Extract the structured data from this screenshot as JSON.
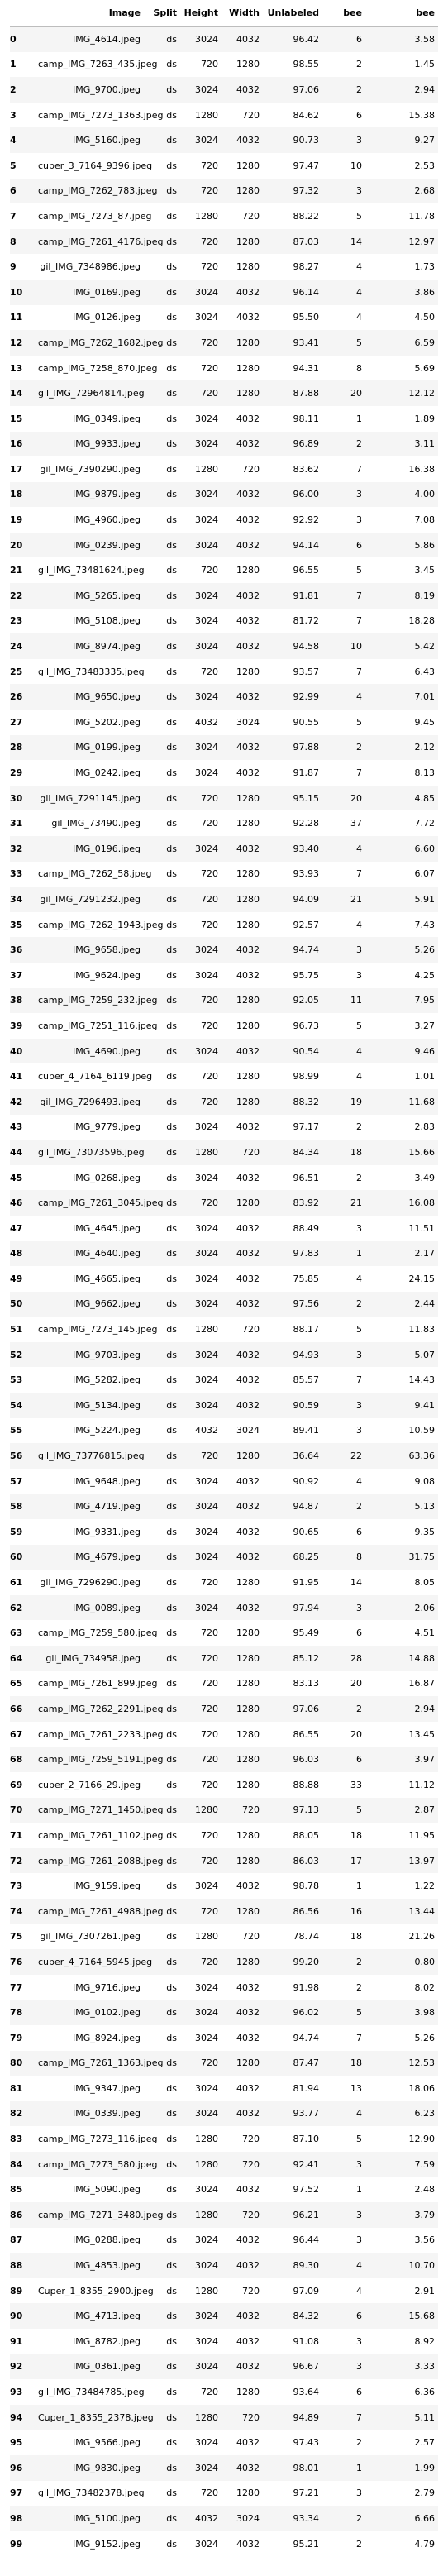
{
  "columns": [
    "",
    "Image",
    "Split",
    "Height",
    "Width",
    "Unlabeled",
    "bee",
    "bee"
  ],
  "rows": [
    [
      "0",
      "IMG_4614.jpeg",
      "ds",
      "3024",
      "4032",
      "96.42",
      "6",
      "3.58"
    ],
    [
      "1",
      "camp_IMG_7263_435.jpeg",
      "ds",
      "720",
      "1280",
      "98.55",
      "2",
      "1.45"
    ],
    [
      "2",
      "IMG_9700.jpeg",
      "ds",
      "3024",
      "4032",
      "97.06",
      "2",
      "2.94"
    ],
    [
      "3",
      "camp_IMG_7273_1363.jpeg",
      "ds",
      "1280",
      "720",
      "84.62",
      "6",
      "15.38"
    ],
    [
      "4",
      "IMG_5160.jpeg",
      "ds",
      "3024",
      "4032",
      "90.73",
      "3",
      "9.27"
    ],
    [
      "5",
      "cuper_3_7164_9396.jpeg",
      "ds",
      "720",
      "1280",
      "97.47",
      "10",
      "2.53"
    ],
    [
      "6",
      "camp_IMG_7262_783.jpeg",
      "ds",
      "720",
      "1280",
      "97.32",
      "3",
      "2.68"
    ],
    [
      "7",
      "camp_IMG_7273_87.jpeg",
      "ds",
      "1280",
      "720",
      "88.22",
      "5",
      "11.78"
    ],
    [
      "8",
      "camp_IMG_7261_4176.jpeg",
      "ds",
      "720",
      "1280",
      "87.03",
      "14",
      "12.97"
    ],
    [
      "9",
      "gil_IMG_7348986.jpeg",
      "ds",
      "720",
      "1280",
      "98.27",
      "4",
      "1.73"
    ],
    [
      "10",
      "IMG_0169.jpeg",
      "ds",
      "3024",
      "4032",
      "96.14",
      "4",
      "3.86"
    ],
    [
      "11",
      "IMG_0126.jpeg",
      "ds",
      "3024",
      "4032",
      "95.50",
      "4",
      "4.50"
    ],
    [
      "12",
      "camp_IMG_7262_1682.jpeg",
      "ds",
      "720",
      "1280",
      "93.41",
      "5",
      "6.59"
    ],
    [
      "13",
      "camp_IMG_7258_870.jpeg",
      "ds",
      "720",
      "1280",
      "94.31",
      "8",
      "5.69"
    ],
    [
      "14",
      "gil_IMG_72964814.jpeg",
      "ds",
      "720",
      "1280",
      "87.88",
      "20",
      "12.12"
    ],
    [
      "15",
      "IMG_0349.jpeg",
      "ds",
      "3024",
      "4032",
      "98.11",
      "1",
      "1.89"
    ],
    [
      "16",
      "IMG_9933.jpeg",
      "ds",
      "3024",
      "4032",
      "96.89",
      "2",
      "3.11"
    ],
    [
      "17",
      "gil_IMG_7390290.jpeg",
      "ds",
      "1280",
      "720",
      "83.62",
      "7",
      "16.38"
    ],
    [
      "18",
      "IMG_9879.jpeg",
      "ds",
      "3024",
      "4032",
      "96.00",
      "3",
      "4.00"
    ],
    [
      "19",
      "IMG_4960.jpeg",
      "ds",
      "3024",
      "4032",
      "92.92",
      "3",
      "7.08"
    ],
    [
      "20",
      "IMG_0239.jpeg",
      "ds",
      "3024",
      "4032",
      "94.14",
      "6",
      "5.86"
    ],
    [
      "21",
      "gil_IMG_73481624.jpeg",
      "ds",
      "720",
      "1280",
      "96.55",
      "5",
      "3.45"
    ],
    [
      "22",
      "IMG_5265.jpeg",
      "ds",
      "3024",
      "4032",
      "91.81",
      "7",
      "8.19"
    ],
    [
      "23",
      "IMG_5108.jpeg",
      "ds",
      "3024",
      "4032",
      "81.72",
      "7",
      "18.28"
    ],
    [
      "24",
      "IMG_8974.jpeg",
      "ds",
      "3024",
      "4032",
      "94.58",
      "10",
      "5.42"
    ],
    [
      "25",
      "gil_IMG_73483335.jpeg",
      "ds",
      "720",
      "1280",
      "93.57",
      "7",
      "6.43"
    ],
    [
      "26",
      "IMG_9650.jpeg",
      "ds",
      "3024",
      "4032",
      "92.99",
      "4",
      "7.01"
    ],
    [
      "27",
      "IMG_5202.jpeg",
      "ds",
      "4032",
      "3024",
      "90.55",
      "5",
      "9.45"
    ],
    [
      "28",
      "IMG_0199.jpeg",
      "ds",
      "3024",
      "4032",
      "97.88",
      "2",
      "2.12"
    ],
    [
      "29",
      "IMG_0242.jpeg",
      "ds",
      "3024",
      "4032",
      "91.87",
      "7",
      "8.13"
    ],
    [
      "30",
      "gil_IMG_7291145.jpeg",
      "ds",
      "720",
      "1280",
      "95.15",
      "20",
      "4.85"
    ],
    [
      "31",
      "gil_IMG_73490.jpeg",
      "ds",
      "720",
      "1280",
      "92.28",
      "37",
      "7.72"
    ],
    [
      "32",
      "IMG_0196.jpeg",
      "ds",
      "3024",
      "4032",
      "93.40",
      "4",
      "6.60"
    ],
    [
      "33",
      "camp_IMG_7262_58.jpeg",
      "ds",
      "720",
      "1280",
      "93.93",
      "7",
      "6.07"
    ],
    [
      "34",
      "gil_IMG_7291232.jpeg",
      "ds",
      "720",
      "1280",
      "94.09",
      "21",
      "5.91"
    ],
    [
      "35",
      "camp_IMG_7262_1943.jpeg",
      "ds",
      "720",
      "1280",
      "92.57",
      "4",
      "7.43"
    ],
    [
      "36",
      "IMG_9658.jpeg",
      "ds",
      "3024",
      "4032",
      "94.74",
      "3",
      "5.26"
    ],
    [
      "37",
      "IMG_9624.jpeg",
      "ds",
      "3024",
      "4032",
      "95.75",
      "3",
      "4.25"
    ],
    [
      "38",
      "camp_IMG_7259_232.jpeg",
      "ds",
      "720",
      "1280",
      "92.05",
      "11",
      "7.95"
    ],
    [
      "39",
      "camp_IMG_7251_116.jpeg",
      "ds",
      "720",
      "1280",
      "96.73",
      "5",
      "3.27"
    ],
    [
      "40",
      "IMG_4690.jpeg",
      "ds",
      "3024",
      "4032",
      "90.54",
      "4",
      "9.46"
    ],
    [
      "41",
      "cuper_4_7164_6119.jpeg",
      "ds",
      "720",
      "1280",
      "98.99",
      "4",
      "1.01"
    ],
    [
      "42",
      "gil_IMG_7296493.jpeg",
      "ds",
      "720",
      "1280",
      "88.32",
      "19",
      "11.68"
    ],
    [
      "43",
      "IMG_9779.jpeg",
      "ds",
      "3024",
      "4032",
      "97.17",
      "2",
      "2.83"
    ],
    [
      "44",
      "gil_IMG_73073596.jpeg",
      "ds",
      "1280",
      "720",
      "84.34",
      "18",
      "15.66"
    ],
    [
      "45",
      "IMG_0268.jpeg",
      "ds",
      "3024",
      "4032",
      "96.51",
      "2",
      "3.49"
    ],
    [
      "46",
      "camp_IMG_7261_3045.jpeg",
      "ds",
      "720",
      "1280",
      "83.92",
      "21",
      "16.08"
    ],
    [
      "47",
      "IMG_4645.jpeg",
      "ds",
      "3024",
      "4032",
      "88.49",
      "3",
      "11.51"
    ],
    [
      "48",
      "IMG_4640.jpeg",
      "ds",
      "3024",
      "4032",
      "97.83",
      "1",
      "2.17"
    ],
    [
      "49",
      "IMG_4665.jpeg",
      "ds",
      "3024",
      "4032",
      "75.85",
      "4",
      "24.15"
    ],
    [
      "50",
      "IMG_9662.jpeg",
      "ds",
      "3024",
      "4032",
      "97.56",
      "2",
      "2.44"
    ],
    [
      "51",
      "camp_IMG_7273_145.jpeg",
      "ds",
      "1280",
      "720",
      "88.17",
      "5",
      "11.83"
    ],
    [
      "52",
      "IMG_9703.jpeg",
      "ds",
      "3024",
      "4032",
      "94.93",
      "3",
      "5.07"
    ],
    [
      "53",
      "IMG_5282.jpeg",
      "ds",
      "3024",
      "4032",
      "85.57",
      "7",
      "14.43"
    ],
    [
      "54",
      "IMG_5134.jpeg",
      "ds",
      "3024",
      "4032",
      "90.59",
      "3",
      "9.41"
    ],
    [
      "55",
      "IMG_5224.jpeg",
      "ds",
      "4032",
      "3024",
      "89.41",
      "3",
      "10.59"
    ],
    [
      "56",
      "gil_IMG_73776815.jpeg",
      "ds",
      "720",
      "1280",
      "36.64",
      "22",
      "63.36"
    ],
    [
      "57",
      "IMG_9648.jpeg",
      "ds",
      "3024",
      "4032",
      "90.92",
      "4",
      "9.08"
    ],
    [
      "58",
      "IMG_4719.jpeg",
      "ds",
      "3024",
      "4032",
      "94.87",
      "2",
      "5.13"
    ],
    [
      "59",
      "IMG_9331.jpeg",
      "ds",
      "3024",
      "4032",
      "90.65",
      "6",
      "9.35"
    ],
    [
      "60",
      "IMG_4679.jpeg",
      "ds",
      "3024",
      "4032",
      "68.25",
      "8",
      "31.75"
    ],
    [
      "61",
      "gil_IMG_7296290.jpeg",
      "ds",
      "720",
      "1280",
      "91.95",
      "14",
      "8.05"
    ],
    [
      "62",
      "IMG_0089.jpeg",
      "ds",
      "3024",
      "4032",
      "97.94",
      "3",
      "2.06"
    ],
    [
      "63",
      "camp_IMG_7259_580.jpeg",
      "ds",
      "720",
      "1280",
      "95.49",
      "6",
      "4.51"
    ],
    [
      "64",
      "gil_IMG_734958.jpeg",
      "ds",
      "720",
      "1280",
      "85.12",
      "28",
      "14.88"
    ],
    [
      "65",
      "camp_IMG_7261_899.jpeg",
      "ds",
      "720",
      "1280",
      "83.13",
      "20",
      "16.87"
    ],
    [
      "66",
      "camp_IMG_7262_2291.jpeg",
      "ds",
      "720",
      "1280",
      "97.06",
      "2",
      "2.94"
    ],
    [
      "67",
      "camp_IMG_7261_2233.jpeg",
      "ds",
      "720",
      "1280",
      "86.55",
      "20",
      "13.45"
    ],
    [
      "68",
      "camp_IMG_7259_5191.jpeg",
      "ds",
      "720",
      "1280",
      "96.03",
      "6",
      "3.97"
    ],
    [
      "69",
      "cuper_2_7166_29.jpeg",
      "ds",
      "720",
      "1280",
      "88.88",
      "33",
      "11.12"
    ],
    [
      "70",
      "camp_IMG_7271_1450.jpeg",
      "ds",
      "1280",
      "720",
      "97.13",
      "5",
      "2.87"
    ],
    [
      "71",
      "camp_IMG_7261_1102.jpeg",
      "ds",
      "720",
      "1280",
      "88.05",
      "18",
      "11.95"
    ],
    [
      "72",
      "camp_IMG_7261_2088.jpeg",
      "ds",
      "720",
      "1280",
      "86.03",
      "17",
      "13.97"
    ],
    [
      "73",
      "IMG_9159.jpeg",
      "ds",
      "3024",
      "4032",
      "98.78",
      "1",
      "1.22"
    ],
    [
      "74",
      "camp_IMG_7261_4988.jpeg",
      "ds",
      "720",
      "1280",
      "86.56",
      "16",
      "13.44"
    ],
    [
      "75",
      "gil_IMG_7307261.jpeg",
      "ds",
      "1280",
      "720",
      "78.74",
      "18",
      "21.26"
    ],
    [
      "76",
      "cuper_4_7164_5945.jpeg",
      "ds",
      "720",
      "1280",
      "99.20",
      "2",
      "0.80"
    ],
    [
      "77",
      "IMG_9716.jpeg",
      "ds",
      "3024",
      "4032",
      "91.98",
      "2",
      "8.02"
    ],
    [
      "78",
      "IMG_0102.jpeg",
      "ds",
      "3024",
      "4032",
      "96.02",
      "5",
      "3.98"
    ],
    [
      "79",
      "IMG_8924.jpeg",
      "ds",
      "3024",
      "4032",
      "94.74",
      "7",
      "5.26"
    ],
    [
      "80",
      "camp_IMG_7261_1363.jpeg",
      "ds",
      "720",
      "1280",
      "87.47",
      "18",
      "12.53"
    ],
    [
      "81",
      "IMG_9347.jpeg",
      "ds",
      "3024",
      "4032",
      "81.94",
      "13",
      "18.06"
    ],
    [
      "82",
      "IMG_0339.jpeg",
      "ds",
      "3024",
      "4032",
      "93.77",
      "4",
      "6.23"
    ],
    [
      "83",
      "camp_IMG_7273_116.jpeg",
      "ds",
      "1280",
      "720",
      "87.10",
      "5",
      "12.90"
    ],
    [
      "84",
      "camp_IMG_7273_580.jpeg",
      "ds",
      "1280",
      "720",
      "92.41",
      "3",
      "7.59"
    ],
    [
      "85",
      "IMG_5090.jpeg",
      "ds",
      "3024",
      "4032",
      "97.52",
      "1",
      "2.48"
    ],
    [
      "86",
      "camp_IMG_7271_3480.jpeg",
      "ds",
      "1280",
      "720",
      "96.21",
      "3",
      "3.79"
    ],
    [
      "87",
      "IMG_0288.jpeg",
      "ds",
      "3024",
      "4032",
      "96.44",
      "3",
      "3.56"
    ],
    [
      "88",
      "IMG_4853.jpeg",
      "ds",
      "3024",
      "4032",
      "89.30",
      "4",
      "10.70"
    ],
    [
      "89",
      "Cuper_1_8355_2900.jpeg",
      "ds",
      "1280",
      "720",
      "97.09",
      "4",
      "2.91"
    ],
    [
      "90",
      "IMG_4713.jpeg",
      "ds",
      "3024",
      "4032",
      "84.32",
      "6",
      "15.68"
    ],
    [
      "91",
      "IMG_8782.jpeg",
      "ds",
      "3024",
      "4032",
      "91.08",
      "3",
      "8.92"
    ],
    [
      "92",
      "IMG_0361.jpeg",
      "ds",
      "3024",
      "4032",
      "96.67",
      "3",
      "3.33"
    ],
    [
      "93",
      "gil_IMG_73484785.jpeg",
      "ds",
      "720",
      "1280",
      "93.64",
      "6",
      "6.36"
    ],
    [
      "94",
      "Cuper_1_8355_2378.jpeg",
      "ds",
      "1280",
      "720",
      "94.89",
      "7",
      "5.11"
    ],
    [
      "95",
      "IMG_9566.jpeg",
      "ds",
      "3024",
      "4032",
      "97.43",
      "2",
      "2.57"
    ],
    [
      "96",
      "IMG_9830.jpeg",
      "ds",
      "3024",
      "4032",
      "98.01",
      "1",
      "1.99"
    ],
    [
      "97",
      "gil_IMG_73482378.jpeg",
      "ds",
      "720",
      "1280",
      "97.21",
      "3",
      "2.79"
    ],
    [
      "98",
      "IMG_5100.jpeg",
      "ds",
      "4032",
      "3024",
      "93.34",
      "2",
      "6.66"
    ],
    [
      "99",
      "IMG_9152.jpeg",
      "ds",
      "3024",
      "4032",
      "95.21",
      "2",
      "4.79"
    ]
  ]
}
